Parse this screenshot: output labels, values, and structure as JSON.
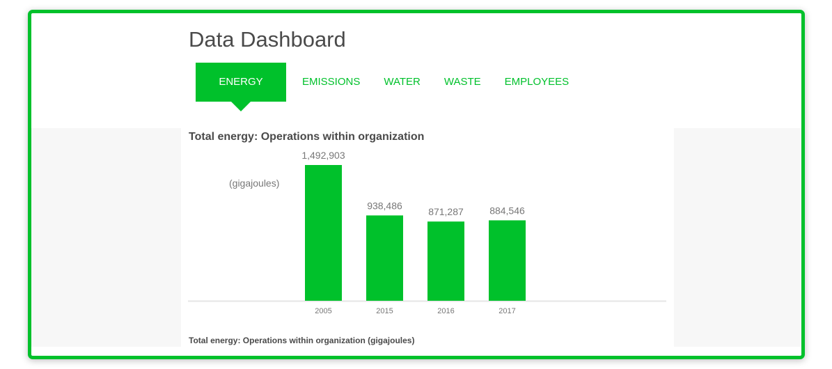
{
  "header": {
    "title": "Data Dashboard"
  },
  "tabs": [
    {
      "label": "ENERGY",
      "active": true
    },
    {
      "label": "EMISSIONS",
      "active": false
    },
    {
      "label": "WATER",
      "active": false
    },
    {
      "label": "WASTE",
      "active": false
    },
    {
      "label": "EMPLOYEES",
      "active": false
    }
  ],
  "colors": {
    "accent": "#00c12b"
  },
  "chart_data": {
    "type": "bar",
    "title": "Total energy: Operations within organization",
    "ylabel": "(gigajoules)",
    "categories": [
      "2005",
      "2015",
      "2016",
      "2017"
    ],
    "values": [
      1492903,
      938486,
      871287,
      884546
    ],
    "value_labels": [
      "1,492,903",
      "938,486",
      "871,287",
      "884,546"
    ],
    "ylim": [
      0,
      1492903
    ],
    "caption": "Total energy: Operations within organization (gigajoules)"
  }
}
